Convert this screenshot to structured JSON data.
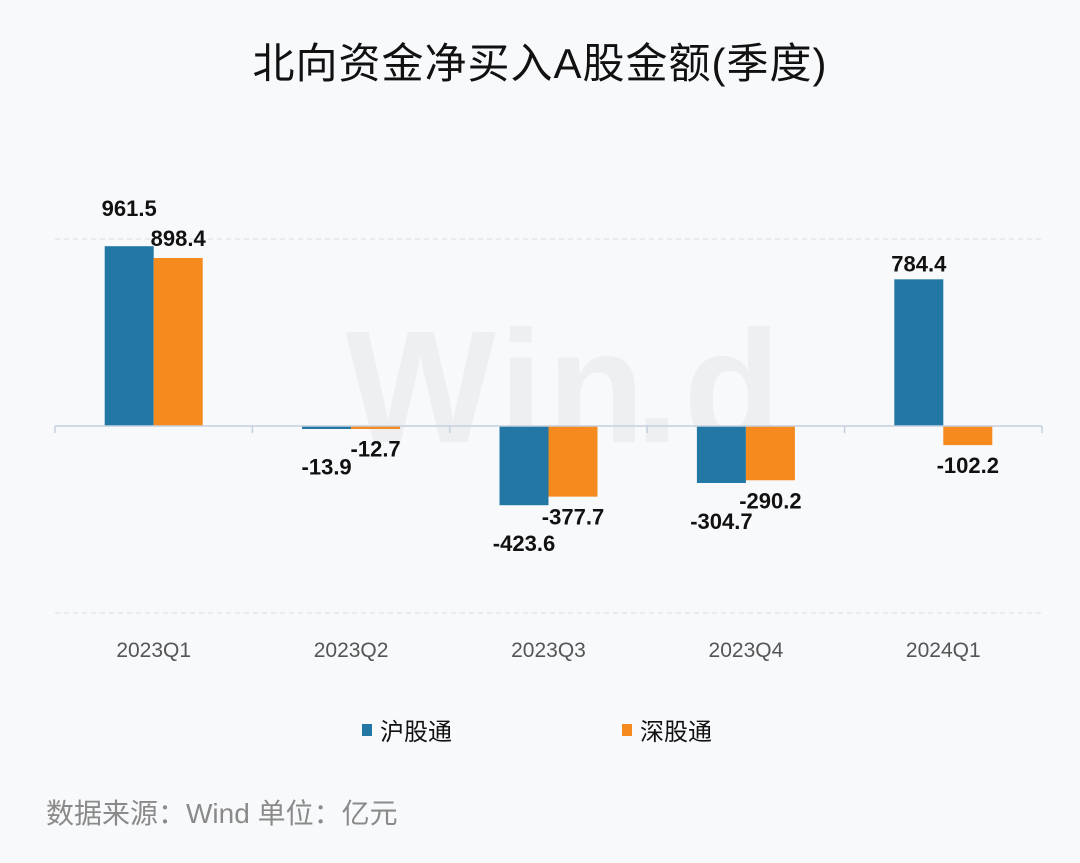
{
  "chart_data": {
    "type": "bar",
    "title": "北向资金净买入A股金额(季度)",
    "categories": [
      "2023Q1",
      "2023Q2",
      "2023Q3",
      "2023Q4",
      "2024Q1"
    ],
    "series": [
      {
        "name": "沪股通",
        "values": [
          961.5,
          -13.9,
          -423.6,
          -304.7,
          784.4
        ],
        "color": "#2277A5"
      },
      {
        "name": "深股通",
        "values": [
          898.4,
          -12.7,
          -377.7,
          -290.2,
          -102.2
        ],
        "color": "#F58A1F"
      }
    ],
    "ylim": [
      -1000,
      1000
    ],
    "grid": true,
    "legend": "bottom",
    "data_labels": true
  },
  "source_note": "数据来源：Wind  单位：亿元",
  "watermark": "Wind"
}
